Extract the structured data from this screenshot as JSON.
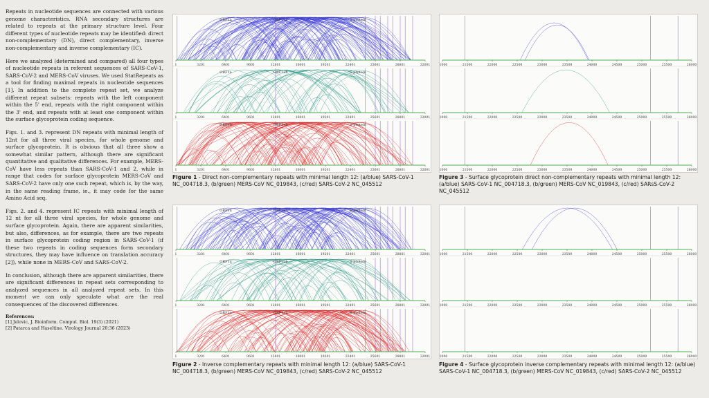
{
  "paragraphs": [
    "Repeats in nucleotide sequences are connected with various genome characteristics. RNA secondary structures are related to repeats at the primary structure level. Four different types of nucleotide repeats may be identified: direct non-complementary (DN), direct complementary, inverse non-complementary and inverse complementary (IC).",
    "Here we analyzed (determined and compared) all four types of nucleotide repeats in referent sequences of SARS-CoV-1, SARS-CoV-2 and MERS-CoV viruses. We used StatRepeats as a tool for finding maximal repeats in nucleotide sequences [1]. In addition to the complete repeat set, we analyze different repeat subsets: repeats with the left component within the 5' end, repeats with the right component within the 3' end, and repeats with at least one component within the surface glycoprotein coding sequence.",
    "Figs. 1. and 3. represent DN repeats with minimal length of 12nt for all three viral species, for whole genome and surface glycoprotein. It is obvious that all three show a somewhat similar pattern, although there are significant quantitative and qualitative differences. For example, MERS-CoV have less repeats than SARS-CoV-1 and 2, while in range that codes for surface glycoprotein MERS-CoV and SARS-CoV-2 have only one such repeat, which is, by the way, in the same reading frame, ie., it may code for the same Amino Acid seq.",
    "Figs. 2. and 4. represent IC repeats with minimal length of 12 nt for all three viral species, for whole genome and surface glycoprotein. Again, there are apparent similarities, but also, differences, as for example, there are two repeats in surface glycoprotein coding region in SARS-CoV-1 (if these two repeats in coding sequences form secondary structures, they may have influence on translation accuracy [2]), while none in MERS-CoV and SARS-CoV-2.",
    "In conclusion, although there are apparent similarities, there are significant differences in repeat sets corresponding to analyzed sequences in all analyzed repeat sets. In this moment we can only speculate what are the real consequences of the discovered differences."
  ],
  "references": {
    "title": "References:",
    "items": [
      "[1] Jelovic, J. Bioinform. Comput. Biol. 19(3) (2021)",
      "[2] Patarca and Haseltine. Virology Journal 20:36 (2023)"
    ]
  },
  "captions": {
    "fig1": {
      "label": "Figure 1",
      "text": " - Direct non-complementary repeats with minimal length 12: (a/blue) SARS-CoV-1 NC_004718.3, (b/green) MERS-CoV NC_019843, (c/red) SARS-CoV-2 NC_045512"
    },
    "fig2": {
      "label": "Figure 2",
      "text": " - Inverse complementary repeats with minimal length 12: (a/blue) SARS-CoV-1 NC_004718.3, (b/green) MERS-CoV NC_019843, (c/red) SARS-CoV-2 NC_045512"
    },
    "fig3": {
      "label": "Figure 3",
      "text": " - Surface glycoprotein direct non-complementary repeats with minimal length 12: (a/blue) SARS-CoV-1 NC_004718.3, (b/green) MERS-CoV NC_019843, (c/red) SARsS-CoV-2 NC_045512"
    },
    "fig4": {
      "label": "Figure 4",
      "text": " - Surface glycoprotein inverse complementary repeats with minimal length 12: (a/blue) SARS-CoV-1 NC_004718.3, (b/green) MERS-CoV NC_019843, (c/red) SARS-CoV-2 NC_045512"
    }
  },
  "genome_axis": {
    "ticks": [
      "1",
      "3201",
      "6401",
      "9601",
      "12801",
      "16001",
      "19201",
      "22401",
      "25601",
      "28801",
      "32001"
    ],
    "range": [
      1,
      32001
    ],
    "region_labels": [
      "ORF1a",
      "ORF1ab",
      "S-protein"
    ]
  },
  "spike_axis": {
    "ticks": [
      "21000",
      "21500",
      "22000",
      "22500",
      "23000",
      "23500",
      "24000",
      "24500",
      "25000",
      "25500",
      "26000"
    ],
    "range": [
      21000,
      26000
    ]
  },
  "colors": {
    "blue": "#3a3ad6",
    "green": "#2f9a86",
    "red": "#dd2b2b",
    "marker": "#a56bd1",
    "baseline": "#4caf50"
  }
}
